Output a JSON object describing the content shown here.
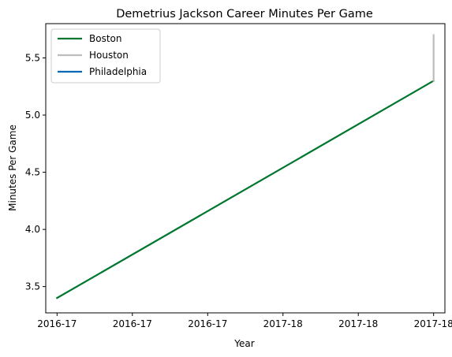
{
  "chart_data": {
    "type": "line",
    "title": "Demetrius Jackson Career Minutes Per Game",
    "xlabel": "Year",
    "ylabel": "Minutes Per Game",
    "xlim": [
      -0.15,
      5.15
    ],
    "ylim": [
      3.27,
      5.8
    ],
    "x_ticks": [
      0,
      1,
      2,
      3,
      4,
      5
    ],
    "x_tick_labels": [
      "2016-17",
      "2016-17",
      "2016-17",
      "2017-18",
      "2017-18",
      "2017-18"
    ],
    "y_ticks": [
      3.5,
      4.0,
      4.5,
      5.0,
      5.5
    ],
    "y_tick_labels": [
      "3.5",
      "4.0",
      "4.5",
      "5.0",
      "5.5"
    ],
    "grid": false,
    "legend_position": "top-left",
    "series": [
      {
        "name": "Boston",
        "color": "#00772f",
        "x": [
          0,
          5
        ],
        "y": [
          3.4,
          5.3
        ]
      },
      {
        "name": "Houston",
        "color": "#bdbdbd",
        "x": [
          5,
          5
        ],
        "y": [
          5.3,
          5.7
        ]
      },
      {
        "name": "Philadelphia",
        "color": "#0069b4",
        "x": [
          5
        ],
        "y": [
          5.3
        ]
      }
    ]
  }
}
